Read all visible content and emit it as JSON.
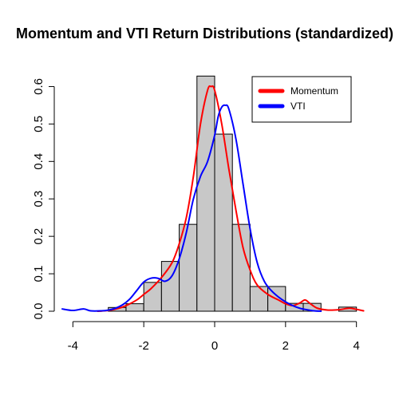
{
  "chart_data": {
    "type": "histogram",
    "title": "Momentum and VTI Return Distributions (standardized)",
    "xlabel": "",
    "ylabel": "",
    "xlim": [
      -4.3,
      4.3
    ],
    "ylim": [
      0,
      0.65
    ],
    "x_ticks": [
      -4,
      -2,
      0,
      2,
      4
    ],
    "y_ticks": [
      0.0,
      0.1,
      0.2,
      0.3,
      0.4,
      0.5,
      0.6
    ],
    "x_tick_labels": [
      "-4",
      "-2",
      "0",
      "2",
      "4"
    ],
    "y_tick_labels": [
      "0.0",
      "0.1",
      "0.2",
      "0.3",
      "0.4",
      "0.5",
      "0.6"
    ],
    "histogram": {
      "fill_color": "#c8c8c8",
      "bins": [
        {
          "start": -3.0,
          "end": -2.5,
          "density": 0.01
        },
        {
          "start": -2.5,
          "end": -2.0,
          "density": 0.02
        },
        {
          "start": -2.0,
          "end": -1.5,
          "density": 0.077
        },
        {
          "start": -1.5,
          "end": -1.0,
          "density": 0.133
        },
        {
          "start": -1.0,
          "end": -0.5,
          "density": 0.232
        },
        {
          "start": -0.5,
          "end": 0.0,
          "density": 0.628
        },
        {
          "start": 0.0,
          "end": 0.5,
          "density": 0.473
        },
        {
          "start": 0.5,
          "end": 1.0,
          "density": 0.232
        },
        {
          "start": 1.0,
          "end": 1.5,
          "density": 0.066
        },
        {
          "start": 1.5,
          "end": 2.0,
          "density": 0.066
        },
        {
          "start": 2.0,
          "end": 2.5,
          "density": 0.021
        },
        {
          "start": 2.5,
          "end": 3.0,
          "density": 0.021
        },
        {
          "start": 3.5,
          "end": 4.0,
          "density": 0.011
        }
      ]
    },
    "series": [
      {
        "name": "Momentum",
        "color": "#ff0000",
        "x": [
          -3.3,
          -3.0,
          -2.7,
          -2.5,
          -2.2,
          -2.0,
          -1.8,
          -1.5,
          -1.2,
          -1.0,
          -0.8,
          -0.6,
          -0.4,
          -0.2,
          -0.1,
          0.0,
          0.2,
          0.4,
          0.6,
          0.8,
          1.0,
          1.2,
          1.5,
          1.8,
          2.0,
          2.2,
          2.4,
          2.55,
          2.7,
          2.9,
          3.2,
          3.5,
          3.8,
          4.0,
          4.2
        ],
        "y": [
          0.0,
          0.002,
          0.008,
          0.015,
          0.03,
          0.045,
          0.06,
          0.09,
          0.13,
          0.18,
          0.25,
          0.36,
          0.5,
          0.59,
          0.6,
          0.59,
          0.5,
          0.38,
          0.27,
          0.17,
          0.11,
          0.07,
          0.045,
          0.03,
          0.02,
          0.015,
          0.022,
          0.03,
          0.02,
          0.008,
          0.003,
          0.004,
          0.008,
          0.005,
          0.001
        ]
      },
      {
        "name": "VTI",
        "color": "#0000ff",
        "x": [
          -4.3,
          -4.0,
          -3.7,
          -3.5,
          -3.2,
          -3.0,
          -2.8,
          -2.6,
          -2.4,
          -2.2,
          -2.0,
          -1.8,
          -1.6,
          -1.4,
          -1.2,
          -1.0,
          -0.8,
          -0.6,
          -0.4,
          -0.2,
          0.0,
          0.1,
          0.2,
          0.3,
          0.4,
          0.6,
          0.8,
          1.0,
          1.2,
          1.4,
          1.6,
          1.8,
          2.0,
          2.2,
          2.4,
          2.6,
          2.8,
          3.0
        ],
        "y": [
          0.006,
          0.002,
          0.006,
          0.001,
          0.001,
          0.003,
          0.008,
          0.017,
          0.032,
          0.055,
          0.078,
          0.088,
          0.088,
          0.08,
          0.095,
          0.14,
          0.21,
          0.3,
          0.36,
          0.4,
          0.47,
          0.52,
          0.545,
          0.55,
          0.54,
          0.46,
          0.34,
          0.22,
          0.13,
          0.08,
          0.055,
          0.038,
          0.025,
          0.015,
          0.008,
          0.004,
          0.001,
          0.0
        ]
      }
    ],
    "legend": {
      "position": "top-right",
      "entries": [
        {
          "label": "Momentum",
          "color": "#ff0000"
        },
        {
          "label": "VTI",
          "color": "#0000ff"
        }
      ]
    }
  }
}
